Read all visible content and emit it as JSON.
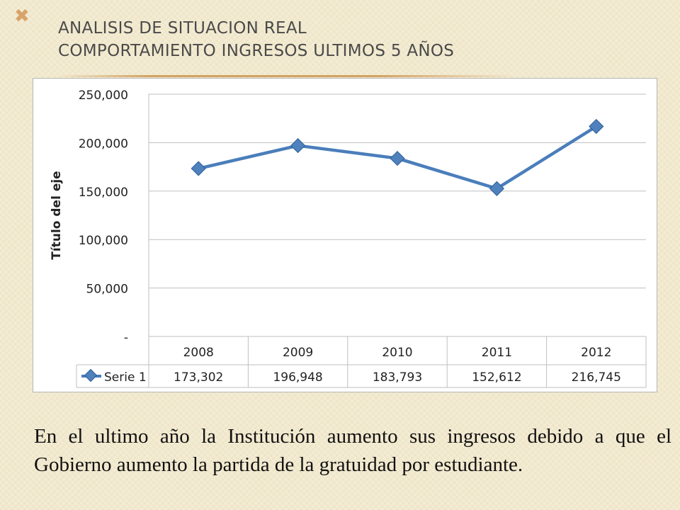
{
  "slide": {
    "bullet": "✖",
    "title_line1": "ANALISIS DE SITUACION REAL",
    "title_line2": "COMPORTAMIENTO INGRESOS ULTIMOS 5 AÑOS",
    "caption": "En el ultimo año la Institución aumento sus ingresos debido a que el Gobierno aumento la partida de la gratuidad por estudiante."
  },
  "chart_data": {
    "type": "line",
    "categories": [
      "2008",
      "2009",
      "2010",
      "2011",
      "2012"
    ],
    "series": [
      {
        "name": "Serie 1",
        "values": [
          173302,
          196948,
          183793,
          152612,
          216745
        ],
        "labels": [
          "173,302",
          "196,948",
          "183,793",
          "152,612",
          "216,745"
        ]
      }
    ],
    "ylabel": "Título del eje",
    "ylim": [
      0,
      250000
    ],
    "yticks": [
      0,
      50000,
      100000,
      150000,
      200000,
      250000
    ],
    "ytick_labels": [
      "-",
      "50,000",
      "100,000",
      "150,000",
      "200,000",
      "250,000"
    ],
    "grid": true,
    "data_table": true,
    "colors": {
      "series": "#4a7ebb",
      "marker": "#4f81bd",
      "grid": "#bfbfbf"
    }
  }
}
